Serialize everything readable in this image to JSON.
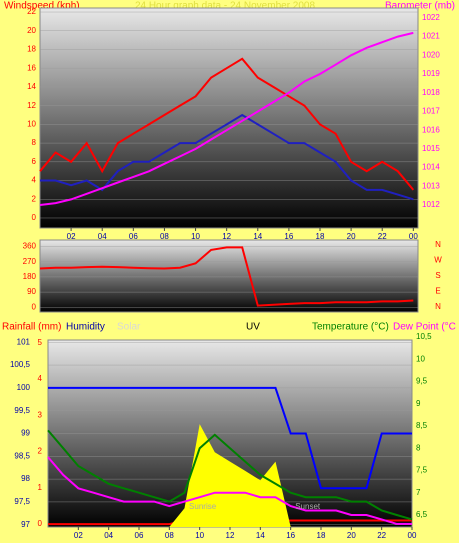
{
  "chart_data": [
    {
      "type": "line",
      "title": "24 Hour graph data - 24 November 2008",
      "x": [
        0,
        1,
        2,
        3,
        4,
        5,
        6,
        7,
        8,
        9,
        10,
        11,
        12,
        13,
        14,
        15,
        16,
        17,
        18,
        19,
        20,
        21,
        22,
        23,
        24
      ],
      "series": [
        {
          "name": "Windspeed (kph)",
          "color": "#ff0000",
          "values": [
            5,
            7,
            6,
            8,
            5,
            8,
            9,
            10,
            11,
            12,
            13,
            15,
            16,
            17,
            15,
            14,
            13,
            12,
            10,
            9,
            6,
            5,
            6,
            5,
            3
          ]
        },
        {
          "color": "#2020c0",
          "values": [
            4,
            4,
            3.5,
            4,
            3,
            5,
            6,
            6,
            7,
            8,
            8,
            9,
            10,
            11,
            10,
            9,
            8,
            8,
            7,
            6,
            4,
            3,
            3,
            2.5,
            2
          ]
        },
        {
          "name": "Barometer (mb)",
          "color": "#ff00ff",
          "axis": "y2",
          "values": [
            1012,
            1012.1,
            1012.3,
            1012.6,
            1012.9,
            1013.2,
            1013.5,
            1013.8,
            1014.2,
            1014.6,
            1015,
            1015.5,
            1016,
            1016.5,
            1017,
            1017.5,
            1018,
            1018.6,
            1019,
            1019.5,
            1020,
            1020.4,
            1020.7,
            1021,
            1021.2
          ]
        }
      ],
      "xlim": [
        0,
        24.3
      ],
      "xticks": [
        {
          "value": 2,
          "label": "02"
        },
        {
          "value": 4,
          "label": "04"
        },
        {
          "value": 6,
          "label": "06"
        },
        {
          "value": 8,
          "label": "08"
        },
        10,
        12,
        14,
        16,
        18,
        20,
        22,
        {
          "value": 24,
          "label": "00"
        }
      ],
      "ylim": [
        -1.07,
        22.43
      ],
      "yticks": [
        0,
        2,
        4,
        6,
        8,
        10,
        12,
        14,
        16,
        18,
        20,
        22
      ],
      "ytick_color": "#ff0000",
      "y2lim": [
        1010.77,
        1022.53
      ],
      "y2ticks": [
        1012,
        1013,
        1014,
        1015,
        1016,
        1017,
        1018,
        1019,
        1020,
        1021,
        1022
      ],
      "y2tick_color": "#ff00ff"
    },
    {
      "type": "line",
      "x": [
        0,
        1,
        2,
        3,
        4,
        5,
        6,
        7,
        8,
        9,
        10,
        11,
        12,
        13,
        14,
        15,
        16,
        17,
        18,
        19,
        20,
        21,
        22,
        23,
        24
      ],
      "series": [
        {
          "color": "#ff0000",
          "values": [
            230,
            235,
            235,
            238,
            240,
            238,
            235,
            232,
            230,
            235,
            260,
            340,
            355,
            355,
            10,
            15,
            20,
            25,
            25,
            30,
            30,
            30,
            35,
            35,
            40
          ]
        }
      ],
      "xlim": [
        0,
        24.3
      ],
      "ylim": [
        -28,
        399
      ],
      "yticks": [
        0,
        90,
        180,
        270,
        360
      ],
      "ytick_color": "#ff0000",
      "compass": [
        "N",
        "W",
        "S",
        "E",
        "N"
      ]
    },
    {
      "type": "line",
      "uv_label": "UV",
      "x": [
        0,
        1,
        2,
        3,
        4,
        5,
        6,
        7,
        8,
        9,
        10,
        11,
        12,
        13,
        14,
        15,
        16,
        17,
        18,
        19,
        20,
        21,
        22,
        23,
        24
      ],
      "series": [
        {
          "name": "Rainfall (mm)",
          "color": "#ff0000",
          "axis": "y3",
          "values": [
            0,
            0,
            0,
            0,
            0,
            0,
            0,
            0,
            0,
            0.1,
            0.1,
            0.1,
            0.1,
            0.1,
            0.1,
            0.1,
            0.1,
            0.1,
            0.1,
            0.1,
            0.1,
            0.1,
            0.1,
            0.1,
            0.1
          ]
        },
        {
          "name": "Humidity",
          "color": "#0000ff",
          "values": [
            100,
            100,
            100,
            100,
            100,
            100,
            100,
            100,
            100,
            100,
            100,
            100,
            100,
            100,
            100,
            100,
            99,
            99,
            97.8,
            97.8,
            97.8,
            97.8,
            99,
            99,
            99
          ]
        },
        {
          "name": "Solar",
          "color": "#ffff00",
          "axis": "y4",
          "fill": true,
          "values": [
            0,
            0,
            0,
            0,
            0,
            0,
            0,
            0,
            0,
            10,
            55,
            40,
            35,
            30,
            25,
            35,
            0,
            0,
            0,
            0,
            0,
            0,
            0,
            0,
            0
          ]
        },
        {
          "name": "Temperature (°C)",
          "color": "#008000",
          "axis": "y2",
          "values": [
            8.4,
            8.0,
            7.6,
            7.4,
            7.2,
            7.1,
            7.0,
            6.9,
            6.8,
            7.0,
            8.0,
            8.3,
            8.0,
            7.7,
            7.4,
            7.2,
            7.0,
            6.9,
            6.9,
            6.9,
            6.8,
            6.8,
            6.6,
            6.5,
            6.4
          ]
        },
        {
          "name": "Dew Point (°C",
          "color": "#ff00ff",
          "axis": "y2",
          "values": [
            7.8,
            7.4,
            7.1,
            7.0,
            6.9,
            6.8,
            6.8,
            6.8,
            6.7,
            6.8,
            6.9,
            7.0,
            7.0,
            7.0,
            6.9,
            6.9,
            6.7,
            6.6,
            6.6,
            6.6,
            6.5,
            6.5,
            6.4,
            6.3,
            6.3
          ]
        }
      ],
      "xlim": [
        0,
        24
      ],
      "xticks": [
        {
          "value": 2,
          "label": "02"
        },
        {
          "value": 4,
          "label": "04"
        },
        {
          "value": 6,
          "label": "06"
        },
        {
          "value": 8,
          "label": "08"
        },
        10,
        12,
        14,
        16,
        18,
        20,
        22,
        {
          "value": 24,
          "label": "00"
        }
      ],
      "ylim": [
        96.95,
        101.05
      ],
      "yticks": [
        97,
        {
          "value": 97.5,
          "label": "97,5"
        },
        98,
        {
          "value": 98.5,
          "label": "98,5"
        },
        99,
        {
          "value": 99.5,
          "label": "99,5"
        },
        100,
        {
          "value": 100.5,
          "label": "100,5"
        },
        101
      ],
      "ytick_color": "#0000aa",
      "y2lim": [
        6.23,
        10.43
      ],
      "y2ticks": [
        {
          "value": 6.5,
          "label": "6,5"
        },
        7,
        {
          "value": 7.5,
          "label": "7,5"
        },
        8,
        {
          "value": 8.5,
          "label": "8,5"
        },
        9,
        {
          "value": 9.5,
          "label": "9,5"
        },
        10,
        {
          "value": 10.5,
          "label": "10,5"
        }
      ],
      "y2tick_color": "#008000",
      "y3lim": [
        -0.08,
        5.08
      ],
      "y3ticks": [
        0,
        1,
        2,
        3,
        4,
        5
      ],
      "y3tick_color": "#ff0000",
      "y4lim": [
        0,
        100
      ],
      "annotations": [
        {
          "text": "Sunrise",
          "x": 9.3
        },
        {
          "text": "Sunset",
          "x": 16.3
        }
      ]
    }
  ]
}
